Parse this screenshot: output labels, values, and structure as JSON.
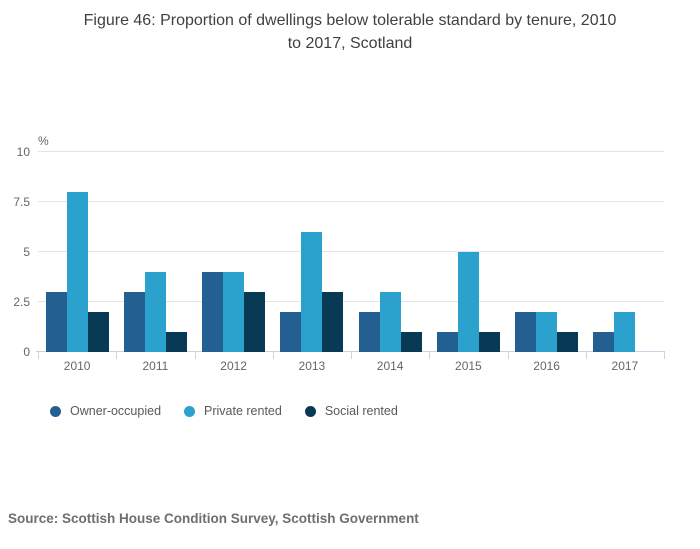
{
  "title_lines": [
    "Figure 46: Proportion of dwellings below tolerable standard by tenure, 2010",
    "to 2017, Scotland"
  ],
  "source": "Source: Scottish House Condition Survey, Scottish Government",
  "chart_data": {
    "type": "bar",
    "title": "Figure 46: Proportion of dwellings below tolerable standard by tenure, 2010 to 2017, Scotland",
    "xlabel": "",
    "ylabel": "%",
    "ylim": [
      0,
      10
    ],
    "yticks": [
      0,
      2.5,
      5,
      7.5,
      10
    ],
    "ytick_labels": [
      "0",
      "2.5",
      "5",
      "7.5",
      "10"
    ],
    "grid": true,
    "legend_position": "bottom",
    "categories": [
      "2010",
      "2011",
      "2012",
      "2013",
      "2014",
      "2015",
      "2016",
      "2017"
    ],
    "series": [
      {
        "name": "Owner-occupied",
        "color": "#245f91",
        "values": [
          3,
          3,
          4,
          2,
          2,
          1,
          2,
          1
        ]
      },
      {
        "name": "Private rented",
        "color": "#2ba1cd",
        "values": [
          8,
          4,
          4,
          6,
          3,
          5,
          2,
          2
        ]
      },
      {
        "name": "Social rented",
        "color": "#083a55",
        "values": [
          2,
          1,
          3,
          3,
          1,
          1,
          1,
          0
        ]
      }
    ]
  },
  "colors": {
    "gridline": "#e4e4e4",
    "axis": "#c9d3e6",
    "tick_text": "#666666",
    "title_text": "#404040",
    "legend_text": "#58595b",
    "source_text": "#6e6e6e"
  }
}
